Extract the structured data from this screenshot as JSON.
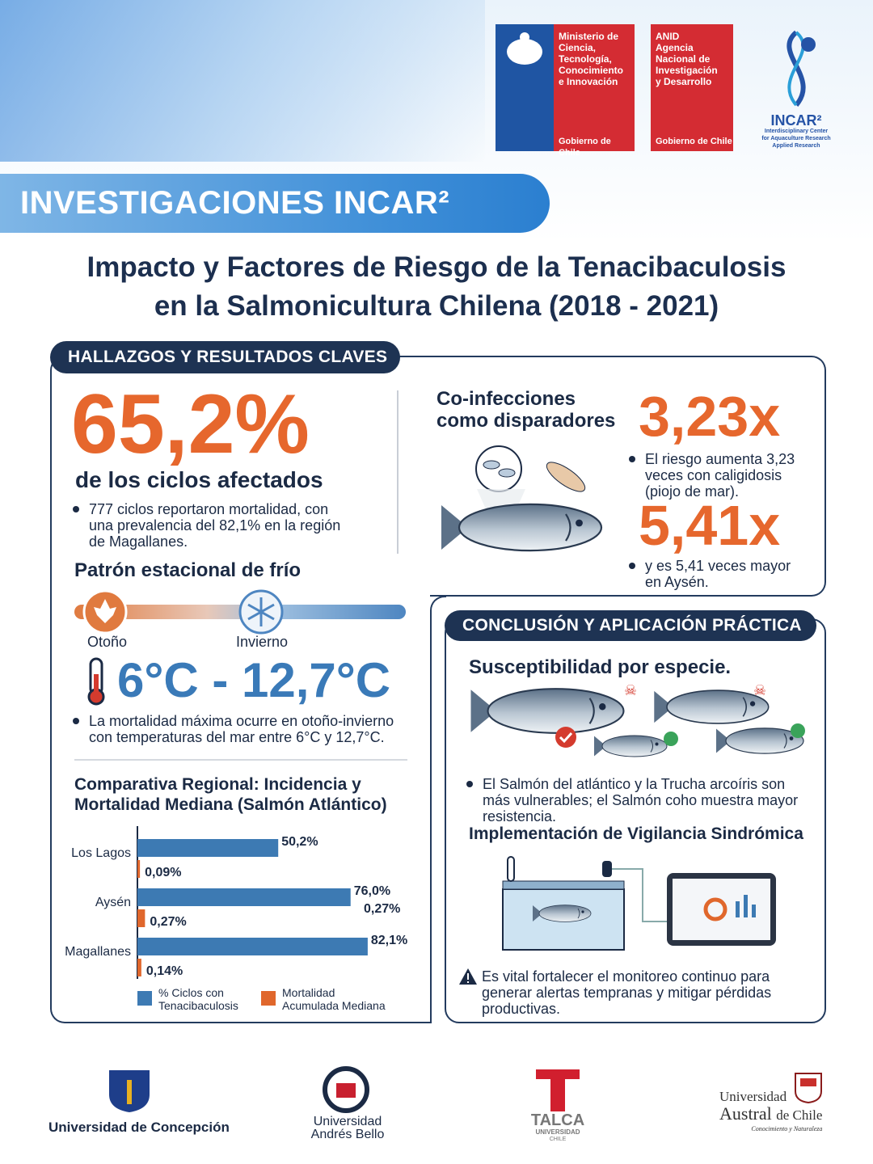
{
  "header": {
    "ministry_logo": {
      "lines": [
        "Ministerio de",
        "Ciencia,",
        "Tecnología,",
        "Conocimiento",
        "e Innovación"
      ],
      "footer": "Gobierno de Chile"
    },
    "anid_logo": {
      "lines": [
        "ANID",
        "Agencia",
        "Nacional de",
        "Investigación",
        "y Desarrollo"
      ],
      "footer": "Gobierno de Chile"
    },
    "incar_logo": {
      "name": "INCAR²",
      "lines": [
        "Interdisciplinary Center",
        "for Aquaculture Research",
        "Applied Research"
      ]
    },
    "banner": "INVESTIGACIONES INCAR²",
    "title": [
      "Impacto y Factores de Riesgo de la Tenacibaculosis",
      "en la Salmonicultura Chilena (2018 - 2021)"
    ]
  },
  "findings": {
    "section_title": "HALLAZGOS Y RESULTADOS CLAVES",
    "headline": "65,2%",
    "headline_caption": "de los ciclos afectados",
    "headline_note": "777 ciclos reportaron mortalidad, con una prevalencia del 82,1% en la región de Magallanes.",
    "seasonal": {
      "title": "Patrón estacional de frío",
      "seasons": [
        "Otoño",
        "Invierno"
      ],
      "temperature_range": "6°C - 12,7°C",
      "note": "La mortalidad máxima ocurre en otoño-invierno con temperaturas del mar entre 6°C y 12,7°C."
    },
    "coinfections": {
      "title": "Co-infecciones como disparadores",
      "stats": [
        {
          "figure": "3,23x",
          "note": "El riesgo aumenta 3,23 veces con caligidosis (piojo de mar)."
        },
        {
          "figure": "5,41x",
          "note": "y es 5,41 veces mayor en Aysén."
        }
      ]
    }
  },
  "chart_data": {
    "type": "bar",
    "orientation": "horizontal",
    "title": "Comparativa Regional: Incidencia y Mortalidad Mediana (Salmón Atlántico)",
    "categories": [
      "Los Lagos",
      "Aysén",
      "Magallanes"
    ],
    "series": [
      {
        "name": "% Ciclos con Tenacibaculosis",
        "color": "#3d7ab3",
        "values": [
          50.2,
          76.0,
          82.1
        ],
        "value_labels": [
          "50,2%",
          "76,0%",
          "82,1%"
        ]
      },
      {
        "name": "Mortalidad Acumulada Mediana",
        "color": "#e0672c",
        "axis": "x2",
        "values": [
          0.09,
          0.27,
          0.14
        ],
        "value_labels": [
          "0,09%",
          "0,27%",
          "0,14%"
        ]
      }
    ],
    "xlim": [
      0,
      100
    ],
    "x2lim": [
      0,
      10
    ],
    "annotations": [
      "0,27%"
    ]
  },
  "conclusion": {
    "section_title": "CONCLUSIÓN Y APLICACIÓN PRÁCTICA",
    "susceptibility_title": "Susceptibilidad por especie.",
    "susceptibility_note": "El Salmón del atlántico y la Trucha arcoíris son más vulnerables; el Salmón coho muestra mayor resistencia.",
    "surveillance_title": "Implementación de Vigilancia Sindrómica",
    "warning": "Es vital fortalecer el monitoreo continuo para generar alertas tempranas y mitigar pérdidas productivas."
  },
  "footer": {
    "concepcion": "Universidad de Concepción",
    "andres_bello": [
      "Universidad",
      "Andrés Bello"
    ],
    "talca": [
      "TALCA",
      "UNIVERSIDAD",
      "CHILE"
    ],
    "austral": [
      "Universidad",
      "Austral",
      "de Chile",
      "Conocimiento y Naturaleza"
    ]
  }
}
